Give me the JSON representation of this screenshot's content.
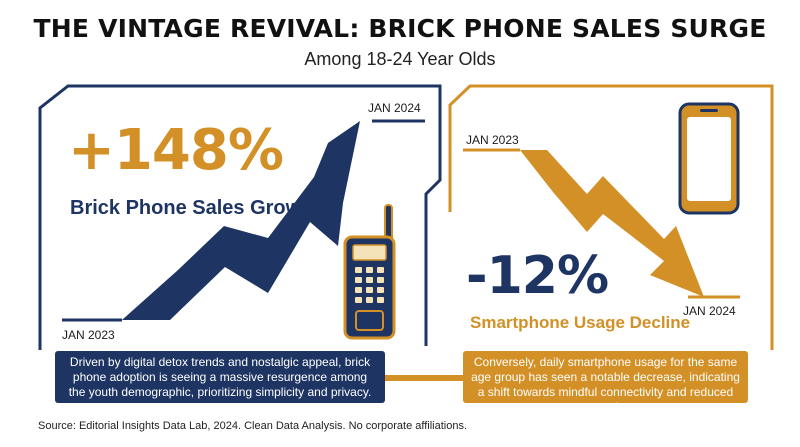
{
  "title": "THE VINTAGE REVIVAL: BRICK PHONE SALES SURGE",
  "subtitle": "Among 18-24 Year Olds",
  "colors": {
    "navy": "#1e3563",
    "gold": "#d39026",
    "text": "#111111"
  },
  "left_panel": {
    "stat": "+148%",
    "caption": "Brick Phone Sales Growth",
    "start_label": "JAN 2023",
    "end_label": "JAN 2024",
    "icon": "brick-phone-icon",
    "description": "Driven by digital detox trends and nostalgic appeal, brick phone adoption is seeing a massive resurgence among the youth demographic, prioritizing simplicity and privacy."
  },
  "right_panel": {
    "stat": "-12%",
    "caption": "Smartphone Usage Decline",
    "start_label": "JAN 2023",
    "end_label": "JAN 2024",
    "icon": "smartphone-icon",
    "description": "Conversely, daily smartphone usage for the same age group has seen a notable decrease, indicating a shift towards mindful connectivity and reduced screen time."
  },
  "source": "Source: Editorial Insights Data Lab, 2024. Clean Data Analysis. No corporate affiliations.",
  "chart_data": [
    {
      "type": "line",
      "x": [
        "JAN 2023",
        "JAN 2024"
      ],
      "series": [
        {
          "name": "Brick Phone Sales Growth",
          "values": [
            0,
            148
          ]
        }
      ],
      "unit": "%",
      "trend": "up"
    },
    {
      "type": "line",
      "x": [
        "JAN 2023",
        "JAN 2024"
      ],
      "series": [
        {
          "name": "Smartphone Usage Decline",
          "values": [
            0,
            -12
          ]
        }
      ],
      "unit": "%",
      "trend": "down"
    }
  ]
}
